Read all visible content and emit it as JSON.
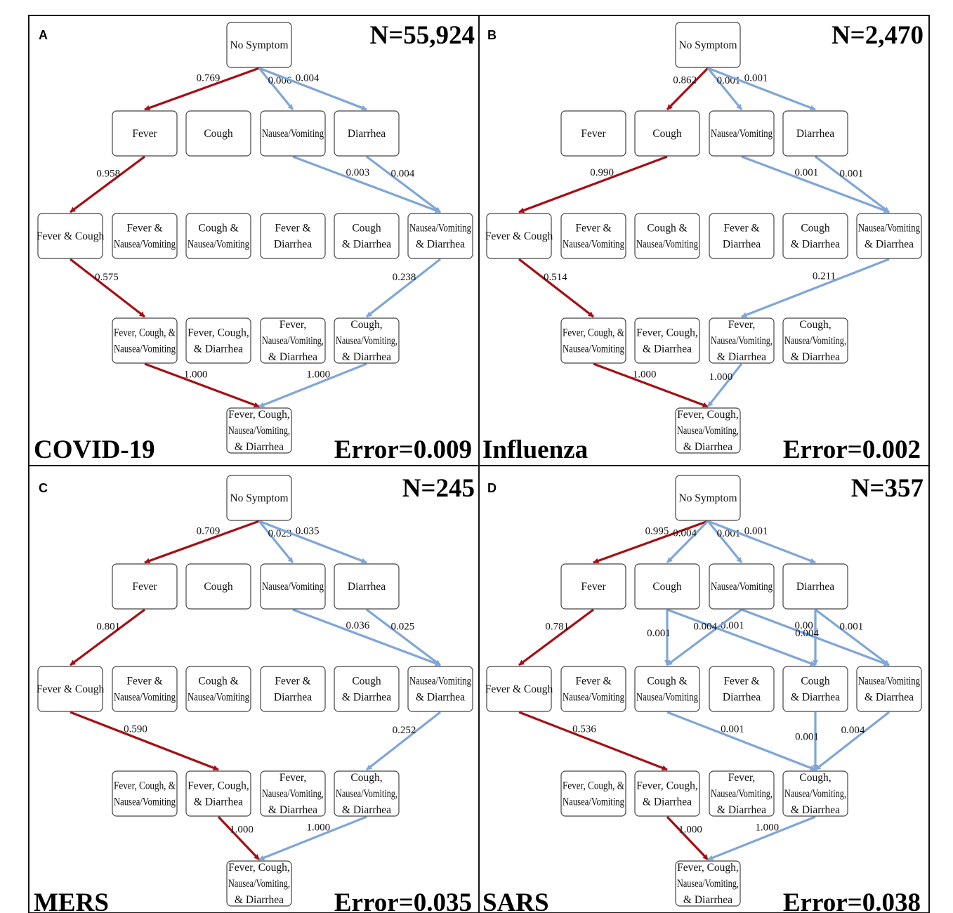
{
  "colors": {
    "primary_path": "#a50f15",
    "other_path": "#7fa6d8",
    "node_border": "#444444",
    "frame": "#111111"
  },
  "node_labels": {
    "none": [
      "No Symptom"
    ],
    "F": [
      "Fever"
    ],
    "C": [
      "Cough"
    ],
    "N": [
      "Nausea/Vomiting"
    ],
    "D": [
      "Diarrhea"
    ],
    "FC": [
      "Fever & Cough"
    ],
    "FN": [
      "Fever &",
      "Nausea/Vomiting"
    ],
    "CN": [
      "Cough &",
      "Nausea/Vomiting"
    ],
    "FD": [
      "Fever &",
      "Diarrhea"
    ],
    "CD": [
      "Cough",
      "& Diarrhea"
    ],
    "ND": [
      "Nausea/Vomiting",
      "& Diarrhea"
    ],
    "FCN": [
      "Fever, Cough, &",
      "Nausea/Vomiting"
    ],
    "FCD": [
      "Fever, Cough,",
      "& Diarrhea"
    ],
    "FND": [
      "Fever,",
      "Nausea/Vomiting,",
      "& Diarrhea"
    ],
    "CND": [
      "Cough,",
      "Nausea/Vomiting,",
      "& Diarrhea"
    ],
    "all": [
      "Fever, Cough,",
      "Nausea/Vomiting,",
      "& Diarrhea"
    ]
  },
  "panels": [
    {
      "letter": "A",
      "count": "N=55,924",
      "disease": "COVID-19",
      "error": "Error=0.009",
      "edges": [
        {
          "from": "none",
          "to": "F",
          "label": "0.769",
          "primary": true
        },
        {
          "from": "none",
          "to": "N",
          "label": "0.006",
          "primary": false
        },
        {
          "from": "none",
          "to": "D",
          "label": "0.004",
          "primary": false
        },
        {
          "from": "F",
          "to": "FC",
          "label": "0.958",
          "primary": true
        },
        {
          "from": "N",
          "to": "ND",
          "label": "0.003",
          "primary": false
        },
        {
          "from": "D",
          "to": "ND",
          "label": "0.004",
          "primary": false
        },
        {
          "from": "FC",
          "to": "FCN",
          "label": "0.575",
          "primary": true
        },
        {
          "from": "ND",
          "to": "CND",
          "label": "0.238",
          "primary": false
        },
        {
          "from": "FCN",
          "to": "all",
          "label": "1.000",
          "primary": true
        },
        {
          "from": "CND",
          "to": "all",
          "label": "1.000",
          "primary": false
        }
      ]
    },
    {
      "letter": "B",
      "count": "N=2,470",
      "disease": "Influenza",
      "error": "Error=0.002",
      "edges": [
        {
          "from": "none",
          "to": "C",
          "label": "0.862",
          "primary": true
        },
        {
          "from": "none",
          "to": "N",
          "label": "0.001",
          "primary": false
        },
        {
          "from": "none",
          "to": "D",
          "label": "0.001",
          "primary": false
        },
        {
          "from": "C",
          "to": "FC",
          "label": "0.990",
          "primary": true
        },
        {
          "from": "N",
          "to": "ND",
          "label": "0.001",
          "primary": false
        },
        {
          "from": "D",
          "to": "ND",
          "label": "0.001",
          "primary": false
        },
        {
          "from": "FC",
          "to": "FCN",
          "label": "0.514",
          "primary": true
        },
        {
          "from": "ND",
          "to": "FND",
          "label": "0.211",
          "primary": false
        },
        {
          "from": "FCN",
          "to": "all",
          "label": "1.000",
          "primary": true
        },
        {
          "from": "FND",
          "to": "all",
          "label": "1.000",
          "primary": false
        }
      ]
    },
    {
      "letter": "C",
      "count": "N=245",
      "disease": "MERS",
      "error": "Error=0.035",
      "edges": [
        {
          "from": "none",
          "to": "F",
          "label": "0.709",
          "primary": true
        },
        {
          "from": "none",
          "to": "N",
          "label": "0.023",
          "primary": false
        },
        {
          "from": "none",
          "to": "D",
          "label": "0.035",
          "primary": false
        },
        {
          "from": "F",
          "to": "FC",
          "label": "0.801",
          "primary": true
        },
        {
          "from": "N",
          "to": "ND",
          "label": "0.036",
          "primary": false
        },
        {
          "from": "D",
          "to": "ND",
          "label": "0.025",
          "primary": false
        },
        {
          "from": "FC",
          "to": "FCD",
          "label": "0.590",
          "primary": true
        },
        {
          "from": "ND",
          "to": "CND",
          "label": "0.252",
          "primary": false
        },
        {
          "from": "FCD",
          "to": "all",
          "label": "1.000",
          "primary": true
        },
        {
          "from": "CND",
          "to": "all",
          "label": "1.000",
          "primary": false
        }
      ]
    },
    {
      "letter": "D",
      "count": "N=357",
      "disease": "SARS",
      "error": "Error=0.038",
      "edges": [
        {
          "from": "none",
          "to": "F",
          "label": "0.995",
          "primary": true
        },
        {
          "from": "none",
          "to": "C",
          "label": "0.004",
          "primary": false
        },
        {
          "from": "none",
          "to": "N",
          "label": "0.001",
          "primary": false
        },
        {
          "from": "none",
          "to": "D",
          "label": "0.001",
          "primary": false
        },
        {
          "from": "F",
          "to": "FC",
          "label": "0.781",
          "primary": true
        },
        {
          "from": "C",
          "to": "CN",
          "label": "0.001",
          "primary": false
        },
        {
          "from": "C",
          "to": "CD",
          "label": "0.001",
          "primary": false
        },
        {
          "from": "N",
          "to": "CN",
          "label": "0.004",
          "primary": false
        },
        {
          "from": "N",
          "to": "ND",
          "label": "0.001",
          "primary": false
        },
        {
          "from": "D",
          "to": "CD",
          "label": "0.004",
          "primary": false
        },
        {
          "from": "D",
          "to": "ND",
          "label": "0.001",
          "primary": false
        },
        {
          "from": "FC",
          "to": "FCD",
          "label": "0.536",
          "primary": true
        },
        {
          "from": "CN",
          "to": "CND",
          "label": "0.001",
          "primary": false
        },
        {
          "from": "CD",
          "to": "CND",
          "label": "0.001",
          "primary": false
        },
        {
          "from": "ND",
          "to": "CND",
          "label": "0.004",
          "primary": false
        },
        {
          "from": "FCD",
          "to": "all",
          "label": "1.000",
          "primary": true
        },
        {
          "from": "CND",
          "to": "all",
          "label": "1.000",
          "primary": false
        }
      ]
    }
  ]
}
